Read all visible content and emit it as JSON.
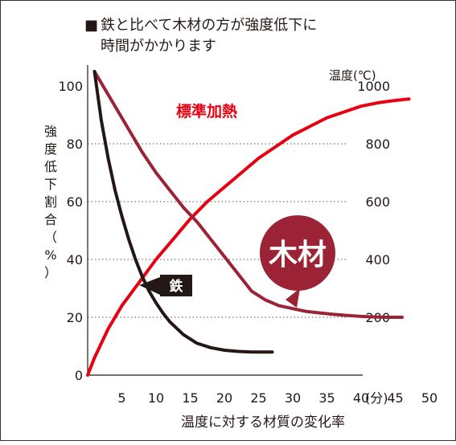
{
  "header": {
    "marker": "■",
    "line1": "鉄と比べて木材の方が強度低下に",
    "line2": "時間がかかります"
  },
  "chart_data": {
    "type": "line",
    "left_ylabel": "強度低下割合（%）",
    "right_ylabel": "温度(℃)",
    "xlabel": "温度に対する材質の変化率",
    "x_unit": "(分)",
    "xticks": [
      5,
      10,
      15,
      20,
      25,
      30,
      35,
      40,
      45,
      50
    ],
    "yticks_left": [
      0,
      20,
      40,
      60,
      80,
      100
    ],
    "yticks_right": [
      200,
      400,
      600,
      800,
      1000
    ],
    "xlim": [
      0,
      50
    ],
    "ylim_left": [
      0,
      105
    ],
    "ylim_right": [
      0,
      1050
    ],
    "grid": "dotted horizontal lines at 20, 40, 60, 80",
    "series": [
      {
        "name": "標準加熱",
        "axis": "right",
        "color": "#e60012",
        "x": [
          0,
          1,
          2,
          3,
          5,
          7.5,
          10,
          12.5,
          15,
          17.5,
          20,
          22.5,
          25,
          27.5,
          30,
          32.5,
          35,
          37.5,
          40,
          42.5,
          45,
          47
        ],
        "y": [
          0,
          60,
          110,
          160,
          240,
          320,
          400,
          470,
          540,
          600,
          650,
          700,
          750,
          790,
          830,
          860,
          890,
          910,
          930,
          942,
          950,
          955
        ]
      },
      {
        "name": "木材",
        "axis": "left",
        "color": "#9b2335",
        "x": [
          1,
          2,
          4,
          6,
          8,
          10,
          12,
          14,
          16,
          18,
          20,
          22,
          24,
          26,
          28,
          30,
          32,
          34,
          36,
          38,
          40,
          42,
          44,
          46
        ],
        "y": [
          105,
          101,
          93,
          85,
          77,
          70,
          64,
          58,
          53,
          47,
          41,
          35,
          29,
          26,
          24,
          23,
          22,
          21.5,
          21,
          20.6,
          20.3,
          20.1,
          20,
          20
        ]
      },
      {
        "name": "鉄",
        "axis": "left",
        "color": "#231815",
        "x": [
          1,
          2,
          3,
          4,
          5,
          6,
          7,
          8,
          9,
          10,
          11,
          12,
          14,
          16,
          18,
          20,
          22,
          24,
          27
        ],
        "y": [
          105,
          88,
          75,
          64,
          55,
          47,
          40,
          34,
          29,
          25,
          21.5,
          18.5,
          14,
          11,
          9.5,
          8.6,
          8.2,
          8,
          8
        ]
      }
    ],
    "labels": {
      "standard_heating": "標準加熱",
      "iron": "鉄",
      "wood": "木材"
    }
  }
}
